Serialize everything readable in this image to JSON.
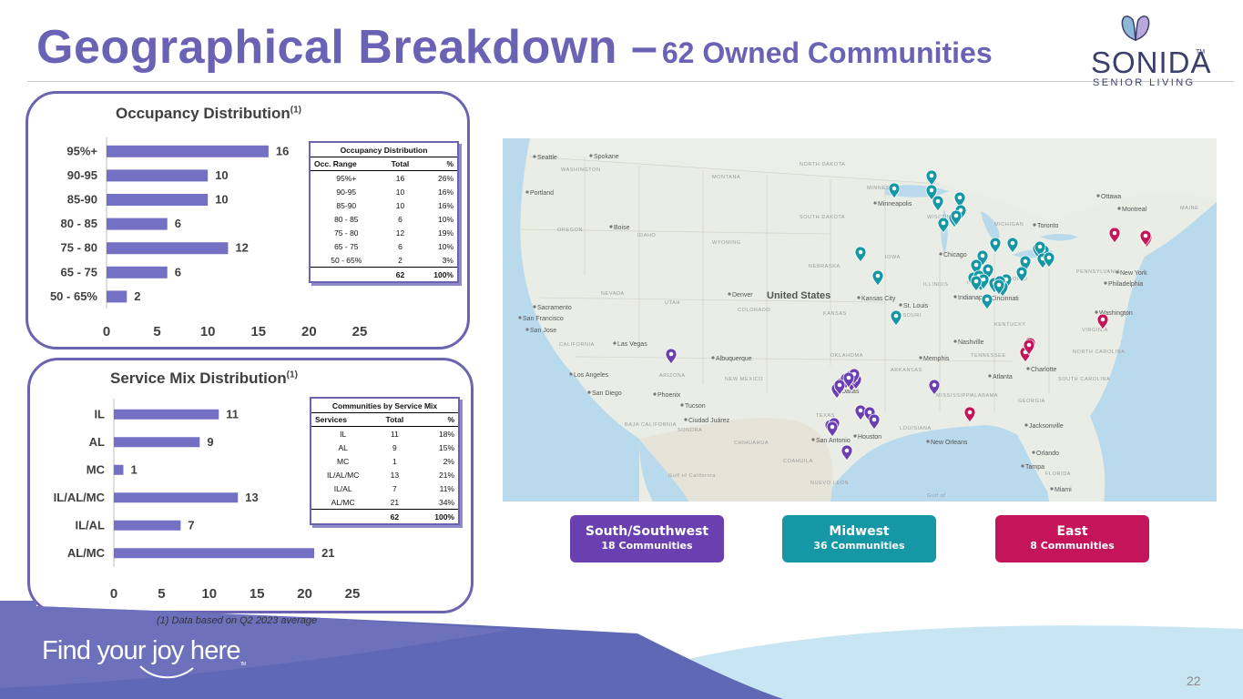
{
  "title": {
    "main": "Geographical Breakdown –",
    "sub": "62 Owned Communities"
  },
  "logo": {
    "wordmark": "SONIDA",
    "tm": "TM",
    "tagline": "SENIOR LIVING"
  },
  "occupancy": {
    "title": "Occupancy Distribution",
    "title_sup": "(1)",
    "table": {
      "caption": "Occupancy Distribution",
      "headers": [
        "Occ. Range",
        "Total",
        "%"
      ],
      "rows": [
        [
          "95%+",
          "16",
          "26%"
        ],
        [
          "90-95",
          "10",
          "16%"
        ],
        [
          "85-90",
          "10",
          "16%"
        ],
        [
          "80 - 85",
          "6",
          "10%"
        ],
        [
          "75 - 80",
          "12",
          "19%"
        ],
        [
          "65 - 75",
          "6",
          "10%"
        ],
        [
          "50 - 65%",
          "2",
          "3%"
        ]
      ],
      "total": [
        "",
        "62",
        "100%"
      ]
    }
  },
  "service_mix": {
    "title": "Service Mix Distribution",
    "title_sup": "(1)",
    "table": {
      "caption": "Communities by Service Mix",
      "headers": [
        "Services",
        "Total",
        "%"
      ],
      "rows": [
        [
          "IL",
          "11",
          "18%"
        ],
        [
          "AL",
          "9",
          "15%"
        ],
        [
          "MC",
          "1",
          "2%"
        ],
        [
          "IL/AL/MC",
          "13",
          "21%"
        ],
        [
          "IL/AL",
          "7",
          "11%"
        ],
        [
          "AL/MC",
          "21",
          "34%"
        ]
      ],
      "total": [
        "",
        "62",
        "100%"
      ]
    }
  },
  "chart_data": [
    {
      "type": "bar",
      "orientation": "horizontal",
      "categories": [
        "95%+",
        "90-95",
        "85-90",
        "80 - 85",
        "75 - 80",
        "65 - 75",
        "50 - 65%"
      ],
      "values": [
        16,
        10,
        10,
        6,
        12,
        6,
        2
      ],
      "xlim": [
        0,
        25
      ],
      "xticks": [
        0,
        5,
        10,
        15,
        20,
        25
      ],
      "bar_color": "#7470c4",
      "grid": false
    },
    {
      "type": "bar",
      "orientation": "horizontal",
      "categories": [
        "IL",
        "AL",
        "MC",
        "IL/AL/MC",
        "IL/AL",
        "AL/MC"
      ],
      "values": [
        11,
        9,
        1,
        13,
        7,
        21
      ],
      "xlim": [
        0,
        25
      ],
      "xticks": [
        0,
        5,
        10,
        15,
        20,
        25
      ],
      "bar_color": "#7470c4",
      "grid": false
    }
  ],
  "map": {
    "country_label": "United States",
    "city_labels": [
      "Seattle",
      "Spokane",
      "Portland",
      "Boise",
      "Sacramento",
      "San Francisco",
      "San Jose",
      "Las Vegas",
      "Los Angeles",
      "San Diego",
      "Phoenix",
      "Tucson",
      "Albuquerque",
      "Ciudad Juárez",
      "Denver",
      "Kansas City",
      "Minneapolis",
      "Chicago",
      "Indianapolis",
      "Cincinnati",
      "St. Louis",
      "Nashville",
      "Memphis",
      "Atlanta",
      "Charlotte",
      "Washington",
      "Philadelphia",
      "New York",
      "Toronto",
      "Ottawa",
      "Montreal",
      "Jacksonville",
      "Orlando",
      "Tampa",
      "Miami",
      "New Orleans",
      "Houston",
      "San Antonio",
      "Dallas"
    ],
    "region_labels": [
      "WASHINGTON",
      "OREGON",
      "IDAHO",
      "MONTANA",
      "WYOMING",
      "NORTH DAKOTA",
      "SOUTH DAKOTA",
      "NEBRASKA",
      "KANSAS",
      "COLORADO",
      "UTAH",
      "NEVADA",
      "CALIFORNIA",
      "ARIZONA",
      "NEW MEXICO",
      "TEXAS",
      "OKLAHOMA",
      "ARKANSAS",
      "LOUISIANA",
      "MISSISSIPPI",
      "ALABAMA",
      "GEORGIA",
      "FLORIDA",
      "TENNESSEE",
      "KENTUCKY",
      "ILLINOIS",
      "INDIANA",
      "OHIO",
      "MICHIGAN",
      "WISCONSIN",
      "IOWA",
      "MISSOURI",
      "MINNESOTA",
      "PENNSYLVANIA",
      "VIRGINIA",
      "NORTH CAROLINA",
      "SOUTH CAROLINA",
      "MAINE",
      "SONORA",
      "CHIHUAHUA",
      "COAHUILA",
      "NUEVO LEÓN",
      "BAJA CALIFORNIA",
      "Gulf of California",
      "Gulf of"
    ],
    "colors": {
      "south": "#6a3fb0",
      "midwest": "#1597a5",
      "east": "#c5155a"
    },
    "pin_counts": {
      "south": 18,
      "midwest": 36,
      "east": 8
    }
  },
  "regions": [
    {
      "name": "South/Southwest",
      "count": "18 Communities",
      "color": "#6a3fb0"
    },
    {
      "name": "Midwest",
      "count": "36 Communities",
      "color": "#1597a5"
    },
    {
      "name": "East",
      "count": "8 Communities",
      "color": "#c5155a"
    }
  ],
  "footnote": "(1) Data based on Q2 2023 average",
  "tagline": "Find your joy here",
  "tagline_tm": "TM",
  "page_number": "22"
}
